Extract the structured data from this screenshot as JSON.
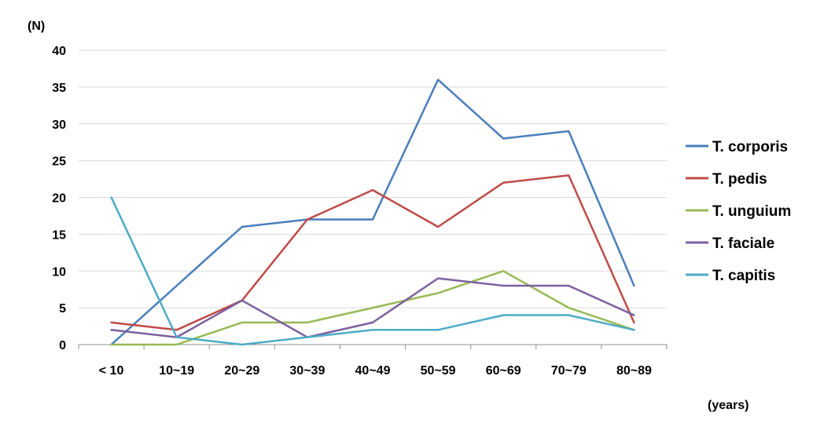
{
  "chart_data": {
    "type": "line",
    "title": "",
    "ylabel": "(N)",
    "xlabel": "(years)",
    "ylim": [
      0,
      40
    ],
    "yticks": [
      0,
      5,
      10,
      15,
      20,
      25,
      30,
      35,
      40
    ],
    "grid": true,
    "legend_position": "right",
    "categories": [
      "< 10",
      "10~19",
      "20~29",
      "30~39",
      "40~49",
      "50~59",
      "60~69",
      "70~79",
      "80~89"
    ],
    "series": [
      {
        "name": "T. corporis",
        "color": "#4a7ebb",
        "values": [
          0,
          8,
          16,
          17,
          17,
          36,
          28,
          29,
          8
        ]
      },
      {
        "name": "T. pedis",
        "color": "#be4b48",
        "values": [
          3,
          2,
          6,
          17,
          21,
          16,
          22,
          23,
          3
        ]
      },
      {
        "name": "T. unguium",
        "color": "#98b954",
        "values": [
          0,
          0,
          3,
          3,
          5,
          7,
          10,
          5,
          2
        ]
      },
      {
        "name": "T. faciale",
        "color": "#7d60a0",
        "values": [
          2,
          1,
          6,
          1,
          3,
          9,
          8,
          8,
          4
        ]
      },
      {
        "name": "T. capitis",
        "color": "#4bacc6",
        "values": [
          20,
          1,
          0,
          1,
          2,
          2,
          4,
          4,
          2
        ]
      }
    ]
  }
}
